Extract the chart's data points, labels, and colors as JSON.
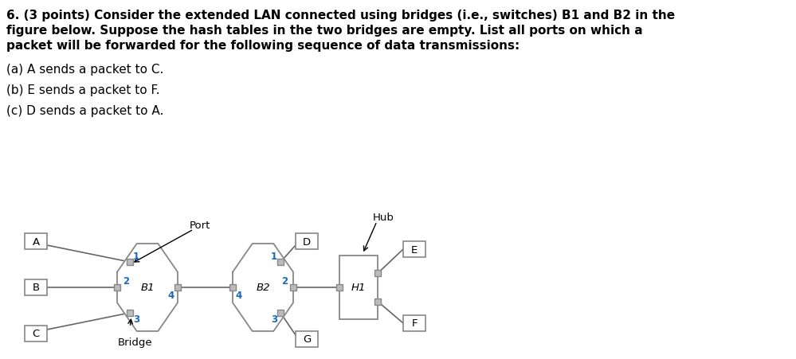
{
  "title_line1": "6. (3 points) Consider the extended LAN connected using bridges (i.e., switches) B1 and B2 in the",
  "title_line2": "figure below. Suppose the hash tables in the two bridges are empty. List all ports on which a",
  "title_line3": "packet will be forwarded for the following sequence of data transmissions:",
  "q1": "(a) A sends a packet to C.",
  "q2": "(b) E sends a packet to F.",
  "q3": "(c) D sends a packet to A.",
  "bg_color": "#ffffff",
  "text_color": "#000000",
  "line_color": "#666666",
  "port_number_color": "#1a6abf",
  "node_box_edge": "#888888",
  "bridge_edge": "#888888",
  "hub_edge": "#888888",
  "port_sq_fill": "#bbbbbb",
  "port_sq_edge": "#888888",
  "title_fontsize": 11.0,
  "question_fontsize": 11.0,
  "label_fontsize": 9.5,
  "port_num_fontsize": 8.5,
  "annot_fontsize": 9.5
}
